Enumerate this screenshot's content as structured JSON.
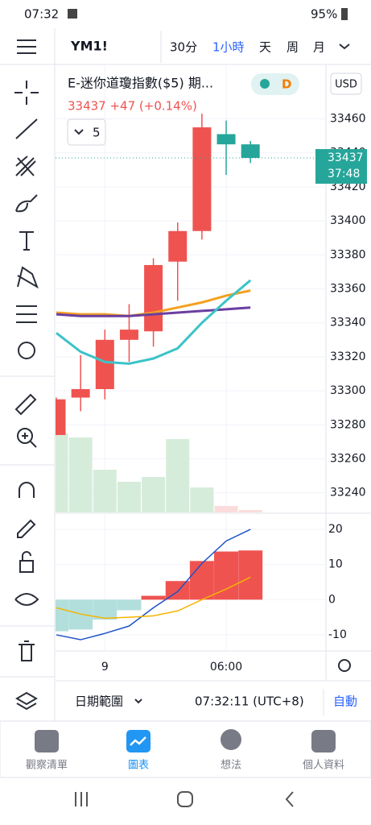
{
  "status_bar": {
    "time": "07:32",
    "battery": "95%"
  },
  "header": {
    "symbol": "YM1!",
    "intervals": [
      "30分",
      "1小時",
      "天",
      "周",
      "月"
    ],
    "selected": 1
  },
  "legend": {
    "title": "E-迷你道瓊指數($5) 期...",
    "badge": "D",
    "quote": "33437 +47 (+0.14%)",
    "indicator_count": 5
  },
  "currency": "USD",
  "price_tag": {
    "value": 33437,
    "countdown": "37:48"
  },
  "chart_data": [
    {
      "type": "candlestick",
      "categories": [
        null,
        null,
        "9",
        null,
        null,
        null,
        null,
        "06:00",
        null
      ],
      "open": [
        33274,
        33296,
        33301,
        33330,
        33335,
        33376,
        33394,
        33451,
        33445
      ],
      "high": [
        33296,
        33321,
        33336,
        33351,
        33378,
        33399,
        33463,
        33459,
        33447
      ],
      "low": [
        33274,
        33288,
        33295,
        33317,
        33326,
        33353,
        33389,
        33427,
        33434
      ],
      "close": [
        33295,
        33301,
        33330,
        33336,
        33374,
        33394,
        33455,
        33445,
        33437
      ],
      "up_color": "#ef5350",
      "down_color": "#26a69a",
      "volume": [
        98,
        93,
        53,
        38,
        44,
        91,
        31,
        8,
        3
      ],
      "volume_colors": [
        "#d6ecda",
        "#d6ecda",
        "#d6ecda",
        "#d6ecda",
        "#d6ecda",
        "#d6ecda",
        "#d6ecda",
        "#fadcdc",
        "#fadcdc"
      ],
      "series": [
        {
          "color": "#f5a020",
          "values": [
            33346,
            33345,
            33345,
            33344,
            33346,
            33349,
            33352,
            33356,
            33359
          ]
        },
        {
          "color": "#6a3fa0",
          "values": [
            33345,
            33344,
            33344,
            33344,
            33345,
            33346,
            33347,
            33348,
            33349
          ]
        },
        {
          "color": "#3cc3c8",
          "values": [
            33334,
            33323,
            33317,
            33316,
            33319,
            33325,
            33340,
            33353,
            33365
          ]
        }
      ],
      "ylim": [
        33228,
        33492
      ],
      "yticks": [
        33240,
        33260,
        33280,
        33300,
        33320,
        33340,
        33360,
        33380,
        33400,
        33420,
        33440,
        33460
      ],
      "grid": true
    },
    {
      "type": "macd",
      "values": [
        -9,
        -8.5,
        -5.7,
        -3,
        1.1,
        5.3,
        11,
        13.7,
        14
      ],
      "positive_color": "#ef5350",
      "negative_color": "#b2dfdb",
      "series": [
        {
          "color": "#1e53c6",
          "values": [
            -10,
            -11.4,
            -9.6,
            -7.5,
            -2.3,
            2.3,
            10.3,
            16.7,
            20
          ]
        },
        {
          "color": "#f5b400",
          "values": [
            -2.3,
            -4.1,
            -5.3,
            -5,
            -4.6,
            -3.2,
            0,
            3,
            6.4
          ]
        }
      ],
      "ylim": [
        -14.6,
        24.6
      ],
      "yticks": [
        -10,
        0,
        10,
        20
      ],
      "grid": true
    }
  ],
  "footer": {
    "date_range": "日期範圍",
    "clock": "07:32:11 (UTC+8)",
    "auto": "自動"
  },
  "nav": [
    "觀察清單",
    "圖表",
    "想法",
    "個人資料"
  ]
}
